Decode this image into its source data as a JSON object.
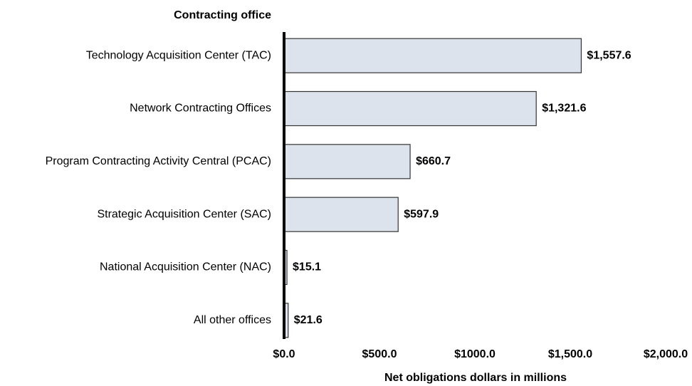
{
  "chart_data": {
    "type": "bar",
    "orientation": "horizontal",
    "y_label": "Contracting office",
    "x_label": "Net obligations dollars in millions",
    "categories": [
      "Technology Acquisition Center (TAC)",
      "Network Contracting Offices",
      "Program Contracting Activity Central (PCAC)",
      "Strategic Acquisition Center (SAC)",
      "National Acquisition Center (NAC)",
      "All other offices"
    ],
    "values": [
      1557.6,
      1321.6,
      660.7,
      597.9,
      15.1,
      21.6
    ],
    "value_labels": [
      "$1,557.6",
      "$1,321.6",
      "$660.7",
      "$597.9",
      "$15.1",
      "$21.6"
    ],
    "color": "#dde3ec",
    "xlim": [
      0,
      2000
    ],
    "xticks": [
      {
        "value": 0,
        "label": "$0.0"
      },
      {
        "value": 500,
        "label": "$500.0"
      },
      {
        "value": 1000,
        "label": "$1000.0"
      },
      {
        "value": 1500,
        "label": "$1,500.0"
      },
      {
        "value": 2000,
        "label": "$2,000.0"
      }
    ],
    "grid": false
  }
}
